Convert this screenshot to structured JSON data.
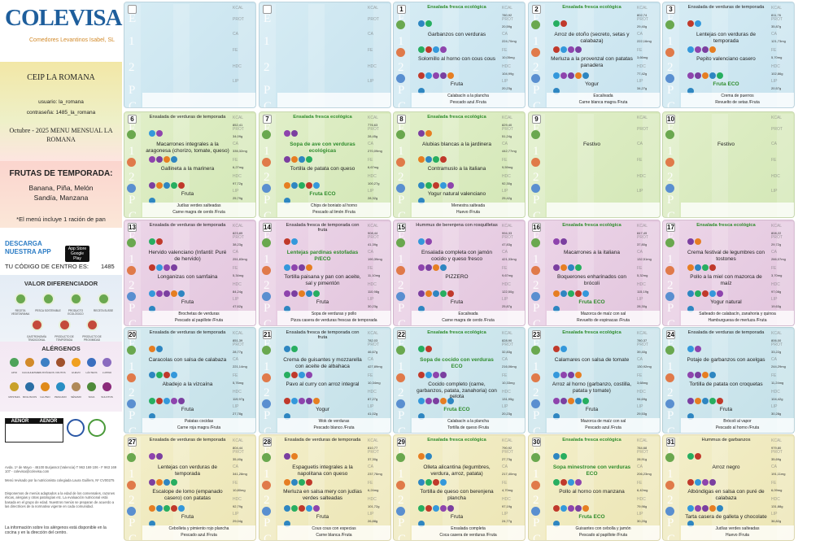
{
  "logo": {
    "title": "COLEVISA",
    "subtitle": "Comedores Levantinos Isabel, SL"
  },
  "side": {
    "school": "CEIP LA ROMANA",
    "user": "usuario: la_romana",
    "password": "contraseña: 1485_la_romana",
    "month": "Octubre - 2025 MENU MENSUAL LA ROMANA",
    "fruit_title": "FRUTAS DE TEMPORADA:",
    "fruits": [
      "Banana, Piña, Melón",
      "Sandía, Manzana"
    ],
    "bread": "*El menú incluye 1 ración de pan",
    "download": "DESCARGA NUESTRA APP",
    "app_store": "App Store",
    "google_play": "Google Play",
    "code_label": "TU CÓDIGO DE CENTRO ES:",
    "code": "1485",
    "valor_title": "VALOR DIFERENCIADOR",
    "valor_items": [
      "RECETA VEGETARIANA",
      "PESCA SOSTENIBLE",
      "PRODUCTO ECOLÓGICO",
      "RECETA SUSSE",
      "GASTRONOMÍA TRADICIONAL",
      "PRODUCTO DE TEMPORADA",
      "PRODUCTO DE PROXIMIDAD"
    ],
    "alergenos_title": "ALÉRGENOS",
    "alergenos": [
      "APIO",
      "CACAHUETES",
      "CRUSTÁCEOS",
      "FRUTOS",
      "HUEVO",
      "LÁCTEOS",
      "LUPINO",
      "MOSTAZA",
      "MOLUSCOS",
      "GLUTEN",
      "PESCADO",
      "SÉSAMO",
      "SOJA",
      "SULFITOS"
    ],
    "aenor1": "AENOR",
    "aenor2": "AENOR",
    "address": "Avda. 1º de Mayo - 46100 Burjassot (Valencia) T 963 169 106 - F 963 169 107 - colevisa@colevisa.com",
    "nutri": "Menú revisado por la nutricionista colegiada Laura Guillem, Nº CV00275",
    "note": "Disponemos de menús adaptados a la edad de los comensales, razones éticas, alergias y otras patologías etc. La evaluación nutricional está basada en el grupo de edad. Nuestros menús se preparan de acuerdo a las directrices de la normativa vigente en cada comunidad.",
    "allergen_info": "La información sobre los alérgenos está disponible en la cocina y en la dirección del centro."
  },
  "labels": {
    "E": "E",
    "first": "1",
    "second": "2",
    "P": "P",
    "C": "C",
    "kcal": "KCAL",
    "prot": "PROT",
    "ca": "CA",
    "fe": "FE",
    "hdc": "HDC",
    "lip": "LIP"
  },
  "days": [
    {
      "num": "",
      "e": "",
      "f": "",
      "s": "",
      "p": "",
      "foot1": "",
      "foot2": "",
      "n": [
        "",
        "",
        "",
        "",
        "",
        ""
      ]
    },
    {
      "num": "",
      "e": "",
      "f": "",
      "s": "",
      "p": "",
      "foot1": "",
      "foot2": "",
      "n": [
        "",
        "",
        "",
        "",
        "",
        ""
      ]
    },
    {
      "num": "1",
      "e": "Ensalada fresca ecológica",
      "eg": true,
      "f": "Garbanzos con verduras",
      "s": "Solomillo al horno con cous cous",
      "p": "Fruta",
      "foot1": "Calabacín a la plancha",
      "foot2": "Pescado azul /Fruta",
      "n": [
        "780,92",
        "20,59g",
        "224,70mg",
        "10,05mg",
        "104,99g",
        "20,23g"
      ]
    },
    {
      "num": "2",
      "e": "Ensalada fresca ecológica",
      "eg": true,
      "f": "Arroz de otoño (secreto, setas y calabaza)",
      "s": "Merluza a la provenzal con patatas panadera",
      "p": "Yogur",
      "foot1": "Escalivada",
      "foot2": "Carne blanca magra /Fruta",
      "n": [
        "802,74",
        "29,40g",
        "222,16mg",
        "3,66mg",
        "77,42g",
        "34,27g"
      ]
    },
    {
      "num": "3",
      "e": "Ensalada de verduras de temporada",
      "f": "Lentejas con verduras de temporada",
      "s": "Pepito valenciano casero",
      "p": "Fruta ECO",
      "pg": true,
      "foot1": "Crema de puerros",
      "foot2": "Revuelto de setas /Fruta",
      "n": [
        "811,76",
        "35,87g",
        "121,73mg",
        "5,70mg",
        "102,86g",
        "20,57g"
      ]
    },
    {
      "num": "6",
      "e": "Ensalada de verduras de temporada",
      "f": "Macarrones integrales a la aragonesa (chorizo, tomate, queso)",
      "s": "Gallineta a la marinera",
      "p": "Fruta",
      "foot1": "Judías verdes salteadas",
      "foot2": "Carne magra de cerdo /Fruta",
      "n": [
        "852,41",
        "34,09g",
        "335,32mg",
        "6,27mg",
        "97,72g",
        "25,79g"
      ]
    },
    {
      "num": "7",
      "e": "Ensalada fresca ecológica",
      "eg": true,
      "f": "Sopa de ave con verduras ecológicas",
      "fg": true,
      "s": "Tortilla de patata con queso",
      "p": "Fruta ECO",
      "pg": true,
      "foot1": "Chips de boniato al horno",
      "foot2": "Pescado al limón /Fruta",
      "n": [
        "776,63",
        "28,45g",
        "270,09mg",
        "6,67mg",
        "100,27g",
        "28,32g"
      ]
    },
    {
      "num": "8",
      "e": "Ensalada fresca ecológica",
      "eg": true,
      "f": "Alubias blancas a la jardinera",
      "s": "Contramuslo a la italiana",
      "p": "Yogur natural valenciano",
      "foot1": "Menestra salteada",
      "foot2": "Huevo /Fruta",
      "n": [
        "829,40",
        "51,24g",
        "442,77mg",
        "9,59mg",
        "92,30g",
        "25,42g"
      ]
    },
    {
      "num": "9",
      "e": "",
      "f": "Festivo",
      "s": "",
      "p": "",
      "foot1": "",
      "foot2": "",
      "n": [
        "",
        "",
        "",
        "",
        "",
        ""
      ]
    },
    {
      "num": "10",
      "e": "",
      "f": "Festivo",
      "s": "",
      "p": "",
      "foot1": "",
      "foot2": "",
      "n": [
        "",
        "",
        "",
        "",
        "",
        ""
      ]
    },
    {
      "num": "13",
      "e": "Ensalada de verduras de temporada",
      "f": "Hervido valenciano (Infantil: Puré de hervido)",
      "s": "Longanizas con samfaina",
      "p": "Fruta",
      "foot1": "Brochetas de verduras",
      "foot2": "Pescado al papillote /Fruta",
      "n": [
        "823,89",
        "38,23g",
        "251,83mg",
        "5,34mg",
        "84,24g",
        "47,62g"
      ]
    },
    {
      "num": "14",
      "e": "Ensalada fresca de temporada con fruta",
      "f": "Lentejas pardinas estofadas P/ECO",
      "fg": true,
      "s": "Tortilla paisana y pan con aceite, sal y pimentón",
      "p": "Fruta",
      "foot1": "Sopa de verduras y pollo",
      "foot2": "Pizza casera de verduras frescas de temporada",
      "n": [
        "908,44",
        "41,39g",
        "190,39mg",
        "11,10mg",
        "110,98g",
        "30,23g"
      ]
    },
    {
      "num": "15",
      "e": "Hummus de berenjena con rosquilletas",
      "f": "Ensalada completa con jamón cocido y queso fresco",
      "s": "PIZZERO",
      "p": "Fruta",
      "foot1": "Escalivada",
      "foot2": "Carne magra de cerdo /Fruta",
      "n": [
        "994,33",
        "47,83g",
        "421,33mg",
        "9,67mg",
        "122,50g",
        "25,87g"
      ]
    },
    {
      "num": "16",
      "e": "Ensalada fresca ecológica",
      "eg": true,
      "f": "Macarrones a la italiana",
      "s": "Boquerones enharinados con brócoli",
      "p": "Fruta ECO",
      "pg": true,
      "foot1": "Mazorca de maíz con sal",
      "foot2": "Revuelto de espinacas /Fruta",
      "n": [
        "847,49",
        "37,80g",
        "132,51mg",
        "5,32mg",
        "115,19g",
        "28,30g"
      ]
    },
    {
      "num": "17",
      "e": "Ensalada fresca ecológica",
      "eg": true,
      "f": "Crema festival de legumbres con tostones",
      "s": "Pollo a la miel con mazorca de maíz",
      "p": "Yogur natural",
      "foot1": "Salteado de calabacín, zanahoria y quinoa",
      "foot2": "Hamburguesa de merluza /Fruta",
      "n": [
        "808,22",
        "29,72g",
        "266,07mg",
        "3,70mg",
        "97,08g",
        "19,63g"
      ]
    },
    {
      "num": "20",
      "e": "Ensalada de verduras de temporada",
      "f": "Caracolas con salsa de calabaza",
      "s": "Abadejo a la vizcaína",
      "p": "Fruta",
      "foot1": "Patatas cocidas",
      "foot2": "Carne roja magra /Fruta",
      "n": [
        "851,39",
        "28,77g",
        "221,14mg",
        "5,76mg",
        "119,97g",
        "27,78g"
      ]
    },
    {
      "num": "21",
      "e": "Ensalada fresca de temporada con fruta",
      "f": "Crema de guisantes y mozzarella con aceite de albahaca",
      "s": "Pavo al curry con arroz integral",
      "p": "Yogur",
      "foot1": "Wok de verduras",
      "foot2": "Pescado blanco /Fruta",
      "n": [
        "782,03",
        "46,67g",
        "427,89mg",
        "10,34mg",
        "87,27g",
        "41,02g"
      ]
    },
    {
      "num": "22",
      "e": "Ensalada fresca ecológica",
      "eg": true,
      "f": "Sopa de cocido con verduras ECO",
      "fg": true,
      "s": "Cocido completo (carne, garbanzos, patata, zanahoria) con pelota",
      "p": "Fruta ECO",
      "pg": true,
      "foot1": "Calabacín a la plancha",
      "foot2": "Tortilla de queso /Fruta",
      "n": [
        "828,90",
        "32,83g",
        "216,06mg",
        "10,33mg",
        "131,95g",
        "20,23g"
      ]
    },
    {
      "num": "23",
      "e": "Ensalada fresca ecológica",
      "eg": true,
      "f": "Calamares con salsa de tomate",
      "s": "Arroz al horno (garbanzo, costilla, patata y tomate)",
      "p": "Fruta",
      "foot1": "Mazorca de maíz con sal",
      "foot2": "Pescado azul /Fruta",
      "n": [
        "780,37",
        "39,40g",
        "130,92mg",
        "3,68mg",
        "94,69g",
        "29,53g"
      ]
    },
    {
      "num": "24",
      "e": "Ensalada de verduras de temporada",
      "f": "Potaje de garbanzos con acelgas",
      "s": "Tortilla de patata con croquetas",
      "p": "Fruta",
      "foot1": "Brócoli al vapor",
      "foot2": "Pescado al horno /Fruta",
      "n": [
        "806,00",
        "33,22g",
        "244,29mg",
        "11,24mg",
        "104,42g",
        "30,28g"
      ]
    },
    {
      "num": "27",
      "e": "Ensalada de verduras de temporada",
      "f": "Lentejas con verduras de temporada",
      "s": "Escalope de lomo (empanado casero) con patatas",
      "p": "Fruta",
      "foot1": "Cebolleta y pimiento rojo plancha",
      "foot2": "Pescado azul /Fruta",
      "n": [
        "804,44",
        "35,40g",
        "341,28mg",
        "10,80mg",
        "92,79g",
        "29,04g"
      ]
    },
    {
      "num": "28",
      "e": "Ensalada de verduras de temporada",
      "f": "Espaguetis integrales a la napolitana con queso",
      "s": "Merluza en salsa mery con judías verdes salteadas",
      "p": "Fruta",
      "foot1": "Cous cous con especias",
      "foot2": "Carne blanca /Fruta",
      "n": [
        "810,77",
        "37,30g",
        "237,76mg",
        "6,24mg",
        "101,72g",
        "26,88g"
      ]
    },
    {
      "num": "29",
      "e": "Ensalada fresca ecológica",
      "eg": true,
      "f": "Olleta alicantina (legumbres, verdura, arroz, patata)",
      "s": "Tortilla de queso con berenjena plancha",
      "p": "Fruta",
      "foot1": "Ensalada completa",
      "foot2": "Coca casera de verduras /Fruta",
      "n": [
        "790,92",
        "27,73g",
        "217,40mg",
        "4,70mg",
        "97,19g",
        "24,77g"
      ]
    },
    {
      "num": "30",
      "e": "Ensalada fresca ecológica",
      "eg": true,
      "f": "Sopa minestrone con verduras ECO",
      "fg": true,
      "s": "Pollo al horno con manzana",
      "p": "Fruta ECO",
      "pg": true,
      "foot1": "Guisantes con cebolla y jamón",
      "foot2": "Pescado al papillote /Fruta",
      "n": [
        "784,68",
        "28,91g",
        "206,23mg",
        "6,42mg",
        "79,96g",
        "30,20g"
      ]
    },
    {
      "num": "31",
      "e": "Hummus de garbanzos",
      "f": "Arroz negro",
      "s": "Albóndigas en salsa con puré de calabaza",
      "p": "Tarta casera de galleta y chocolate",
      "foot1": "Judías verdes salteadas",
      "foot2": "Huevo /Fruta",
      "n": [
        "979,80",
        "35,69g",
        "191,11mg",
        "6,09mg",
        "131,88g",
        "36,82g"
      ]
    }
  ]
}
